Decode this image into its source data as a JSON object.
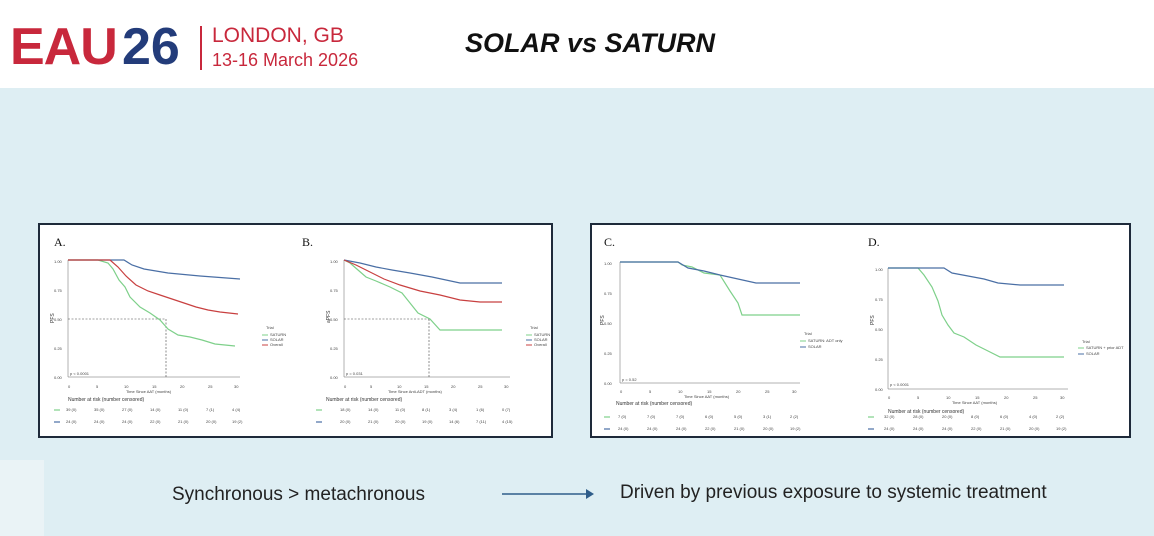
{
  "header": {
    "logo_eau": "EAU",
    "logo_year": "26",
    "logo_city": "LONDON, GB",
    "logo_dates": "13-16 March 2026",
    "title": "SOLAR vs SATURN"
  },
  "colors": {
    "eau_red": "#c8283c",
    "eau_blue": "#233c7a",
    "content_bg": "#deeef3",
    "curve_green": "#7ed08a",
    "curve_blue": "#4a6fa5",
    "curve_red": "#c84040",
    "curve_lightblue": "#6a9ad6"
  },
  "left_panel": {
    "plot_a": {
      "label": "A.",
      "p_value": "p < 0.0001",
      "ylabel": "PFS",
      "yticks": [
        "1.00",
        "0.75",
        "0.50",
        "0.25",
        "0.00"
      ],
      "xticks": [
        "0",
        "5",
        "10",
        "15",
        "20",
        "25",
        "30"
      ],
      "xlabel": "Time Since AAT (months)",
      "legend_title": "Trial",
      "legend": [
        "SATURN",
        "SOLAR",
        "Overall"
      ],
      "risk_title": "Number at risk (number censored)",
      "risk_rows": [
        [
          "39 (0)",
          "35 (0)",
          "27 (0)",
          "14 (0)",
          "11 (0)",
          "7 (1)",
          "4 (4)"
        ],
        [
          "24 (0)",
          "24 (0)",
          "24 (0)",
          "22 (0)",
          "21 (0)",
          "20 (0)",
          "19 (2)"
        ]
      ]
    },
    "plot_b": {
      "label": "B.",
      "p_value": "p = 0.031",
      "ylabel": "aPFS",
      "yticks": [
        "1.00",
        "0.75",
        "0.50",
        "0.25",
        "0.00"
      ],
      "xticks": [
        "0",
        "5",
        "10",
        "15",
        "20",
        "25",
        "30"
      ],
      "xlabel": "Time Since Anti-ADT (months)",
      "legend_title": "Trial",
      "legend": [
        "SATURN",
        "SOLAR",
        "Overall"
      ],
      "risk_title": "Number at risk (number censored)",
      "risk_rows": [
        [
          "18 (0)",
          "14 (0)",
          "11 (0)",
          "8 (1)",
          "3 (4)",
          "1 (6)",
          "0 (7)"
        ],
        [
          "20 (0)",
          "21 (0)",
          "20 (0)",
          "19 (0)",
          "14 (6)",
          "7 (11)",
          "4 (15)"
        ]
      ]
    }
  },
  "right_panel": {
    "plot_c": {
      "label": "C.",
      "p_value": "p = 0.52",
      "ylabel": "PFS",
      "yticks": [
        "1.00",
        "0.75",
        "0.50",
        "0.25",
        "0.00"
      ],
      "xticks": [
        "0",
        "5",
        "10",
        "15",
        "20",
        "25",
        "30"
      ],
      "xlabel": "Time Since AAT (months)",
      "legend_title": "Trial",
      "legend": [
        "SATURN: ADT only",
        "SOLAR"
      ],
      "risk_title": "Number at risk (number censored)",
      "risk_rows": [
        [
          "7 (0)",
          "7 (0)",
          "7 (0)",
          "6 (0)",
          "5 (0)",
          "3 (1)",
          "2 (2)"
        ],
        [
          "24 (0)",
          "24 (0)",
          "24 (0)",
          "22 (0)",
          "21 (0)",
          "20 (0)",
          "19 (2)"
        ]
      ]
    },
    "plot_d": {
      "label": "D.",
      "p_value": "p < 0.0001",
      "ylabel": "PFS",
      "yticks": [
        "1.00",
        "0.75",
        "0.50",
        "0.25",
        "0.00"
      ],
      "xticks": [
        "0",
        "5",
        "10",
        "15",
        "20",
        "25",
        "30"
      ],
      "xlabel": "Time Since AAT (months)",
      "legend_title": "Trial",
      "legend": [
        "SATURN + prior ADT",
        "SOLAR"
      ],
      "risk_title": "Number at risk (number censored)",
      "risk_rows": [
        [
          "32 (0)",
          "28 (0)",
          "20 (0)",
          "8 (0)",
          "6 (0)",
          "4 (0)",
          "2 (2)"
        ],
        [
          "24 (0)",
          "24 (0)",
          "24 (0)",
          "22 (0)",
          "21 (0)",
          "20 (0)",
          "19 (2)"
        ]
      ]
    }
  },
  "footer": {
    "left_text": "Synchronous > metachronous",
    "right_text": "Driven by previous exposure to systemic treatment"
  }
}
